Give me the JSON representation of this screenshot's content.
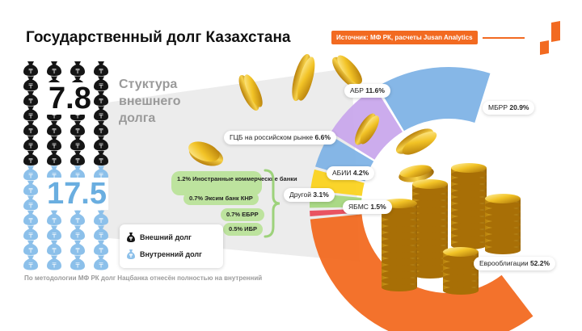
{
  "header": {
    "title": "Государственный долг Казахстана",
    "source": "Источник: МФ РК, расчеты Jusan Analytics"
  },
  "debt": {
    "external_value": "7.8",
    "internal_value": "17.5",
    "subtitle": "Стуктура внешнего долга"
  },
  "legend": {
    "external": "Внешний долг",
    "internal": "Внутренний долг"
  },
  "note": "По методологии МФ РК долг Нацбанка отнесён полностью на внутренний",
  "other_breakdown": [
    "1.2% Иностранные коммерческие банки",
    "0.7% Эксим банк КНР",
    "0.7% ЕБРР",
    "0.5% ИБР"
  ],
  "colors": {
    "orange": "#f26a21",
    "blue": "#7fb3e6",
    "purple": "#c9a8ec",
    "yellow": "#fbd320",
    "green": "#a7d87f",
    "red": "#e94b5a",
    "external_bag": "#151515",
    "internal_bag": "#8cc0ea"
  },
  "chart_data": {
    "type": "pie",
    "subtype": "semi-donut",
    "title": "Стуктура внешнего долга",
    "unit": "%",
    "slices": [
      {
        "label": "Еврооблигации",
        "value": 52.2,
        "color": "#f26a21"
      },
      {
        "label": "ЯБМС",
        "value": 1.5,
        "color": "#e94b5a"
      },
      {
        "label": "Другой",
        "value": 3.1,
        "color": "#a7d87f"
      },
      {
        "label": "АБИИ",
        "value": 4.2,
        "color": "#fbd320"
      },
      {
        "label": "ГЦБ на российском рынке",
        "value": 6.6,
        "color": "#7fb3e6"
      },
      {
        "label": "АБР",
        "value": 11.6,
        "color": "#c9a8ec"
      },
      {
        "label": "МБРР",
        "value": 20.9,
        "color": "#7fb3e6"
      }
    ]
  }
}
